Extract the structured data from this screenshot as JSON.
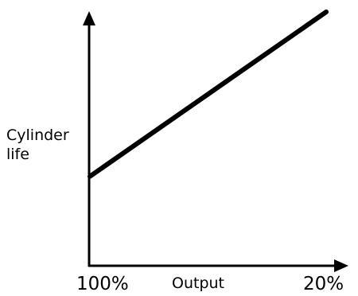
{
  "chart_data": {
    "type": "line",
    "title": "",
    "ylabel_lines": [
      "Cylinder",
      "life"
    ],
    "xlabel": "Output",
    "x_start_label": "100%",
    "x_end_label": "20%",
    "x": [
      100,
      20
    ],
    "y": [
      0.35,
      1.0
    ],
    "xlim": [
      100,
      20
    ],
    "ylim": [
      0,
      1.0
    ],
    "grid": false,
    "legend": "none",
    "line_color": "#000000"
  }
}
